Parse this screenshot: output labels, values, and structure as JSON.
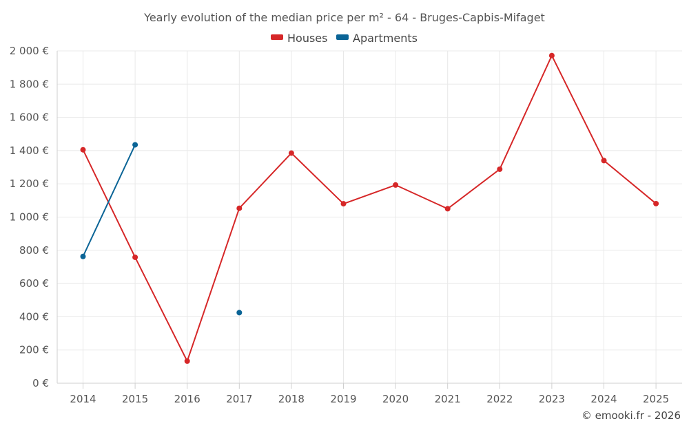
{
  "chart_data": {
    "type": "line",
    "title": "Yearly evolution of the median price per m² - 64 - Bruges-Capbis-Mifaget",
    "categories": [
      "2014",
      "2015",
      "2016",
      "2017",
      "2018",
      "2019",
      "2020",
      "2021",
      "2022",
      "2023",
      "2024",
      "2025"
    ],
    "series": [
      {
        "name": "Houses",
        "color": "#d62728",
        "values": [
          1405,
          758,
          133,
          1053,
          1385,
          1080,
          1193,
          1050,
          1288,
          1972,
          1340,
          1081
        ]
      },
      {
        "name": "Apartments",
        "color": "#0a6496",
        "values": [
          763,
          1435,
          null,
          425,
          null,
          null,
          null,
          null,
          null,
          null,
          null,
          null
        ]
      }
    ],
    "ylim": [
      0,
      2000
    ],
    "y_ticks": [
      0,
      200,
      400,
      600,
      800,
      1000,
      1200,
      1400,
      1600,
      1800,
      2000
    ],
    "y_tick_labels": [
      "0 €",
      "200 €",
      "400 €",
      "600 €",
      "800 €",
      "1 000 €",
      "1 200 €",
      "1 400 €",
      "1 600 €",
      "1 800 €",
      "2 000 €"
    ],
    "grid": true,
    "legend_position": "top-center",
    "xlabel": "",
    "ylabel": ""
  },
  "credit": "© emooki.fr - 2026"
}
